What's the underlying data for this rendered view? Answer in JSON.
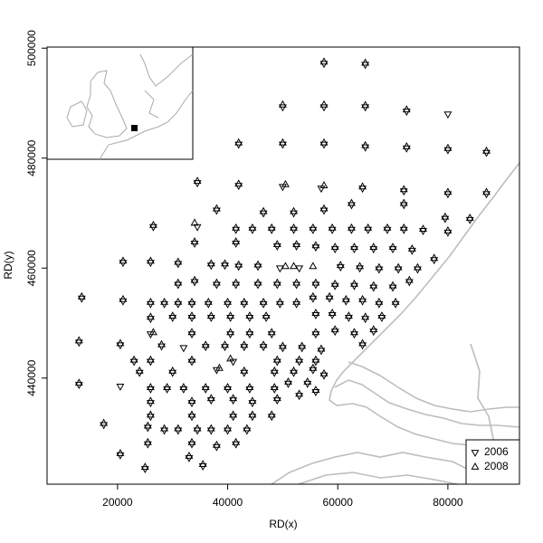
{
  "chart_data": {
    "type": "scatter",
    "x_label": "RD(x)",
    "y_label": "RD(y)",
    "xlim": [
      7200,
      93000
    ],
    "ylim": [
      420700,
      500200
    ],
    "xticks": [
      20000,
      40000,
      60000,
      80000
    ],
    "yticks": [
      440000,
      460000,
      480000,
      500000
    ],
    "legend": "bottom-right",
    "series": [
      {
        "name": "2006",
        "marker": "triangle-down",
        "color": "#000000",
        "x": [
          57500,
          65000,
          50000,
          57500,
          65000,
          72500,
          80000,
          42000,
          50000,
          57500,
          65000,
          72500,
          80000,
          87000,
          34500,
          42000,
          50000,
          57000,
          64500,
          72000,
          80000,
          87000,
          38000,
          46500,
          52000,
          57500,
          62500,
          72000,
          79500,
          84000,
          26500,
          34500,
          41500,
          44500,
          48000,
          52000,
          55500,
          59000,
          62500,
          65500,
          69000,
          72000,
          75500,
          80000,
          34000,
          41500,
          49000,
          52500,
          56000,
          59500,
          63000,
          66500,
          70000,
          73500,
          21000,
          26000,
          31000,
          37000,
          39500,
          42000,
          45500,
          49500,
          53000,
          60500,
          64000,
          67500,
          71000,
          74500,
          77500,
          31000,
          34000,
          38000,
          41500,
          45500,
          49000,
          52500,
          56000,
          59500,
          63000,
          66500,
          70000,
          73000,
          13500,
          21000,
          26000,
          28500,
          31000,
          33500,
          36500,
          40000,
          43000,
          46500,
          49500,
          52500,
          55500,
          58500,
          61500,
          64500,
          67500,
          70500,
          26000,
          30000,
          33500,
          37000,
          40500,
          44000,
          47000,
          56000,
          59000,
          62000,
          65000,
          68000,
          13000,
          20500,
          26000,
          33500,
          40500,
          44000,
          48000,
          56000,
          59500,
          63000,
          66500,
          28000,
          32000,
          36000,
          39500,
          43000,
          46500,
          50000,
          53500,
          57000,
          64500,
          23000,
          26000,
          33500,
          41000,
          49000,
          53000,
          56000,
          24000,
          30000,
          38000,
          43000,
          48500,
          52000,
          55500,
          13000,
          20500,
          26000,
          29000,
          32000,
          36000,
          40000,
          44000,
          48500,
          51000,
          54500,
          57500,
          26000,
          33500,
          37000,
          41000,
          44500,
          49000,
          53000,
          56000,
          26000,
          33500,
          41000,
          44500,
          48000,
          17500,
          25500,
          28500,
          31000,
          34500,
          37000,
          40000,
          43500,
          20500,
          25500,
          33500,
          38000,
          41500,
          33000,
          35500,
          25000
        ],
        "y": [
          497200,
          497000,
          489300,
          489300,
          489300,
          488500,
          488000,
          482500,
          482500,
          482500,
          482000,
          481800,
          481500,
          481000,
          475500,
          475000,
          474800,
          474500,
          474500,
          474000,
          473500,
          473500,
          470500,
          470000,
          470000,
          470500,
          471500,
          471500,
          469000,
          468800,
          467500,
          467500,
          467000,
          467000,
          467000,
          467000,
          467000,
          467000,
          467000,
          467000,
          467000,
          467000,
          466800,
          466500,
          464500,
          464500,
          464000,
          464000,
          463800,
          463500,
          463500,
          463500,
          463500,
          463200,
          461000,
          461000,
          460800,
          460500,
          460500,
          460300,
          460300,
          460000,
          460000,
          460200,
          460000,
          459800,
          459800,
          459800,
          461500,
          457000,
          457500,
          457000,
          457000,
          457000,
          457000,
          457000,
          457000,
          456800,
          456800,
          456500,
          456500,
          457500,
          454500,
          454000,
          453500,
          453500,
          453500,
          453500,
          453500,
          453500,
          453500,
          453500,
          453500,
          453500,
          454500,
          454500,
          454000,
          454000,
          453500,
          453500,
          450800,
          451000,
          451000,
          451000,
          451000,
          451000,
          451000,
          451500,
          451500,
          451000,
          450800,
          451000,
          446500,
          446000,
          448000,
          448000,
          448000,
          448000,
          448000,
          448000,
          448500,
          448000,
          448500,
          445800,
          445500,
          445700,
          445700,
          445700,
          445700,
          445500,
          445500,
          445000,
          446000,
          443000,
          443000,
          443000,
          443000,
          443000,
          443000,
          443000,
          441000,
          441000,
          441500,
          441000,
          441000,
          441000,
          441500,
          438800,
          438500,
          438000,
          438000,
          438000,
          438000,
          438000,
          438000,
          438000,
          439000,
          439000,
          440500,
          435500,
          435500,
          436000,
          436000,
          435500,
          436000,
          436800,
          437500,
          433000,
          433000,
          433000,
          433000,
          433000,
          431500,
          431000,
          430500,
          430500,
          430500,
          430500,
          430500,
          430500,
          426000,
          428000,
          428000,
          427500,
          428000,
          425500,
          424000,
          423500
        ]
      },
      {
        "name": "2008",
        "marker": "triangle-up",
        "color": "#000000",
        "x": [
          57500,
          65000,
          50000,
          57500,
          65000,
          72500,
          42000,
          50000,
          57500,
          65000,
          72500,
          80000,
          87000,
          34500,
          42000,
          50500,
          57500,
          64500,
          72000,
          80000,
          87000,
          38000,
          46500,
          52000,
          57500,
          62500,
          72000,
          79500,
          84000,
          26500,
          34000,
          41500,
          44500,
          48000,
          52000,
          55500,
          59000,
          62500,
          65500,
          69000,
          72000,
          75500,
          80000,
          34000,
          41500,
          49000,
          52500,
          56000,
          59500,
          63000,
          66500,
          70000,
          73500,
          21000,
          26000,
          31000,
          37000,
          39500,
          42000,
          45500,
          50500,
          52000,
          55500,
          60500,
          64000,
          67500,
          71000,
          74500,
          77500,
          31000,
          34000,
          38000,
          41500,
          45500,
          49000,
          52500,
          56000,
          59500,
          63000,
          66500,
          70000,
          73000,
          13500,
          21000,
          26000,
          28500,
          31000,
          33500,
          36500,
          40000,
          43000,
          46500,
          49500,
          52500,
          55500,
          58500,
          61500,
          64500,
          67500,
          70500,
          26000,
          30000,
          33500,
          37000,
          40500,
          44000,
          47000,
          56000,
          59000,
          62000,
          65000,
          68000,
          13000,
          20500,
          26500,
          33500,
          40500,
          44000,
          48000,
          56000,
          59500,
          63000,
          66500,
          28000,
          36000,
          39500,
          43000,
          46500,
          50000,
          53500,
          57000,
          64500,
          23000,
          26000,
          33500,
          40500,
          49000,
          53000,
          56000,
          24000,
          30000,
          38500,
          43000,
          48500,
          52000,
          55500,
          13000,
          26000,
          29000,
          32000,
          36000,
          40000,
          44000,
          48500,
          51000,
          54500,
          57500,
          26000,
          33500,
          37000,
          41000,
          44500,
          49000,
          53000,
          56000,
          26000,
          33500,
          41000,
          44500,
          48000,
          17500,
          25500,
          28500,
          31000,
          34500,
          37000,
          40000,
          43500,
          20500,
          25500,
          33500,
          38000,
          41500,
          33000,
          35500,
          25000
        ],
        "y": [
          497500,
          497300,
          489700,
          489700,
          489600,
          488800,
          482800,
          482800,
          482800,
          482300,
          482100,
          481800,
          481300,
          475800,
          475300,
          475200,
          475000,
          474800,
          474300,
          473800,
          473800,
          470800,
          470300,
          470300,
          470800,
          471800,
          471800,
          469300,
          469100,
          467800,
          468200,
          467300,
          467300,
          467300,
          467300,
          467300,
          467300,
          467300,
          467300,
          467300,
          467300,
          467100,
          466800,
          464800,
          464800,
          464300,
          464300,
          464100,
          463800,
          463800,
          463800,
          463800,
          463500,
          461300,
          461300,
          461100,
          460800,
          460800,
          460600,
          460600,
          460300,
          460300,
          460300,
          460500,
          460300,
          460100,
          460100,
          460100,
          461800,
          457300,
          457800,
          457300,
          457300,
          457300,
          457300,
          457300,
          457300,
          457100,
          457100,
          456800,
          456800,
          457800,
          454800,
          454300,
          453800,
          453800,
          453800,
          453800,
          453800,
          453800,
          453800,
          453800,
          453800,
          453800,
          454800,
          454800,
          454300,
          454300,
          453800,
          453800,
          451100,
          451300,
          451300,
          451300,
          451300,
          451300,
          451300,
          451800,
          451800,
          451300,
          451100,
          451300,
          446800,
          446300,
          448300,
          448300,
          448300,
          448300,
          448300,
          448300,
          448800,
          448300,
          448800,
          446100,
          446000,
          446000,
          446000,
          446000,
          445800,
          445800,
          445300,
          446300,
          443300,
          443300,
          443300,
          443500,
          443300,
          443300,
          443300,
          441300,
          441300,
          441800,
          441300,
          441300,
          441300,
          441800,
          439100,
          438300,
          438300,
          438300,
          438300,
          438300,
          438300,
          438300,
          439300,
          439300,
          440800,
          435800,
          435800,
          436300,
          436300,
          435800,
          436300,
          437100,
          437800,
          433300,
          433300,
          433300,
          433300,
          433300,
          431800,
          431300,
          430800,
          430800,
          430800,
          430800,
          430800,
          430800,
          426300,
          428300,
          428300,
          427800,
          428300,
          425800,
          424300,
          423800
        ]
      }
    ]
  }
}
